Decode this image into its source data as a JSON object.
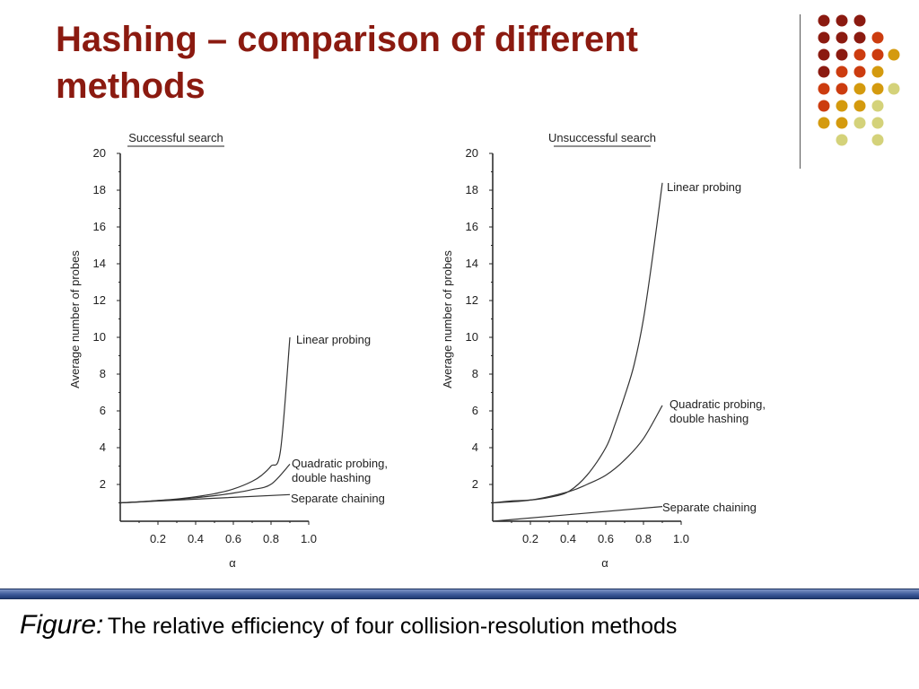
{
  "slide": {
    "title": "Hashing – comparison of different methods",
    "caption_label": "Figure:",
    "caption_text": "The relative efficiency of four collision-resolution methods"
  },
  "decor": {
    "dot_colors": [
      "#8b1a10",
      "#cc3c0f",
      "#d49a0e",
      "#d4d27a"
    ],
    "bar_color": "#3d5a99"
  },
  "chart_data": [
    {
      "type": "line",
      "title": "Successful search",
      "xlabel": "α",
      "ylabel": "Average number of probes",
      "xlim": [
        0,
        1.0
      ],
      "ylim": [
        0,
        20
      ],
      "xticks": [
        0.2,
        0.4,
        0.6,
        0.8,
        1.0
      ],
      "yticks": [
        2,
        4,
        6,
        8,
        10,
        12,
        14,
        16,
        18,
        20
      ],
      "grid": false,
      "series": [
        {
          "name": "Linear probing",
          "x": [
            0.0,
            0.1,
            0.2,
            0.3,
            0.4,
            0.5,
            0.6,
            0.7,
            0.75,
            0.8,
            0.85,
            0.9
          ],
          "y": [
            1.0,
            1.06,
            1.13,
            1.21,
            1.33,
            1.5,
            1.75,
            2.17,
            2.5,
            3.0,
            3.83,
            10.0
          ]
        },
        {
          "name": "Quadratic probing, double hashing",
          "x": [
            0.0,
            0.1,
            0.2,
            0.3,
            0.4,
            0.5,
            0.6,
            0.7,
            0.8,
            0.9
          ],
          "y": [
            1.0,
            1.05,
            1.12,
            1.19,
            1.28,
            1.39,
            1.53,
            1.72,
            2.01,
            3.1
          ]
        },
        {
          "name": "Separate chaining",
          "x": [
            0.0,
            0.9
          ],
          "y": [
            1.0,
            1.45
          ]
        }
      ]
    },
    {
      "type": "line",
      "title": "Unsuccessful search",
      "xlabel": "α",
      "ylabel": "Average number of probes",
      "xlim": [
        0,
        1.0
      ],
      "ylim": [
        0,
        20
      ],
      "xticks": [
        0.2,
        0.4,
        0.6,
        0.8,
        1.0
      ],
      "yticks": [
        2,
        4,
        6,
        8,
        10,
        12,
        14,
        16,
        18,
        20
      ],
      "grid": false,
      "series": [
        {
          "name": "Linear probing",
          "x": [
            0.0,
            0.1,
            0.2,
            0.3,
            0.4,
            0.5,
            0.6,
            0.65,
            0.7,
            0.75,
            0.8,
            0.85,
            0.9
          ],
          "y": [
            1.0,
            1.1,
            1.15,
            1.3,
            1.6,
            2.5,
            4.0,
            5.3,
            6.8,
            8.5,
            11.0,
            14.5,
            18.4
          ]
        },
        {
          "name": "Quadratic probing, double hashing",
          "x": [
            0.0,
            0.2,
            0.4,
            0.5,
            0.6,
            0.7,
            0.8,
            0.9
          ],
          "y": [
            1.0,
            1.15,
            1.6,
            2.0,
            2.5,
            3.33,
            4.5,
            6.3
          ]
        },
        {
          "name": "Separate chaining",
          "x": [
            0.0,
            0.9
          ],
          "y": [
            0.0,
            0.8
          ]
        }
      ]
    }
  ]
}
